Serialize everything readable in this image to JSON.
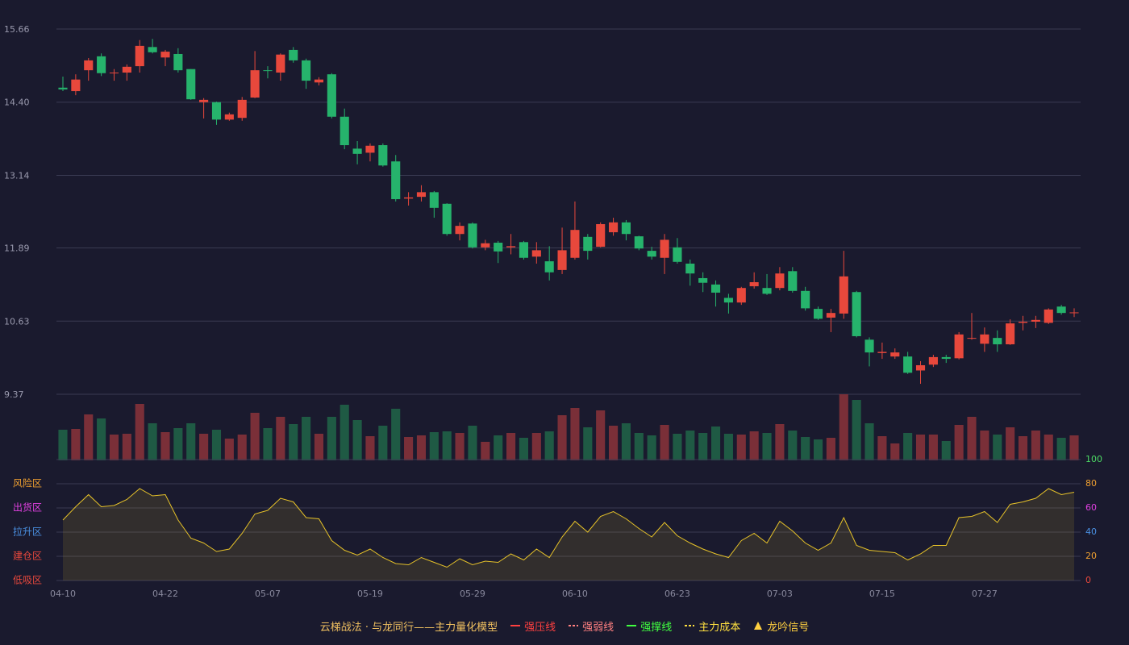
{
  "chart_data": {
    "type": "candlestick",
    "title": "云梯战法 · 与龙同行——主力量化模型",
    "categories": [
      "04-10",
      null,
      null,
      null,
      null,
      null,
      null,
      null,
      "04-22",
      null,
      null,
      null,
      null,
      null,
      null,
      null,
      "05-07",
      null,
      null,
      null,
      null,
      null,
      null,
      null,
      "05-19",
      null,
      null,
      null,
      null,
      null,
      null,
      null,
      "05-29",
      null,
      null,
      null,
      null,
      null,
      null,
      null,
      "06-10",
      null,
      null,
      null,
      null,
      null,
      null,
      null,
      "06-23",
      null,
      null,
      null,
      null,
      null,
      null,
      null,
      "07-03",
      null,
      null,
      null,
      null,
      null,
      null,
      null,
      "07-15",
      null,
      null,
      null,
      null,
      null,
      null,
      null,
      "07-27",
      null,
      null,
      null,
      null,
      null,
      null,
      null
    ],
    "open": [
      14.65,
      14.59,
      14.95,
      15.19,
      14.9,
      14.91,
      15.02,
      15.35,
      15.17,
      15.23,
      14.97,
      14.4,
      14.4,
      14.1,
      14.13,
      14.48,
      14.95,
      14.91,
      15.3,
      15.12,
      14.74,
      14.88,
      14.15,
      13.6,
      13.53,
      13.66,
      13.38,
      12.74,
      12.77,
      12.85,
      12.65,
      12.13,
      12.31,
      11.9,
      11.98,
      11.9,
      11.99,
      11.74,
      11.66,
      11.51,
      11.72,
      12.08,
      11.91,
      12.16,
      12.33,
      12.09,
      11.84,
      11.72,
      11.9,
      11.62,
      11.37,
      11.26,
      11.03,
      10.95,
      11.23,
      11.2,
      11.2,
      11.49,
      11.15,
      10.84,
      10.69,
      10.76,
      11.13,
      10.31,
      10.08,
      10.02,
      10.02,
      9.78,
      9.88,
      10.01,
      9.99,
      10.33,
      10.24,
      10.34,
      10.23,
      10.6,
      10.62,
      10.6,
      10.88,
      10.77
    ],
    "close": [
      14.62,
      14.79,
      15.12,
      14.9,
      14.91,
      15.01,
      15.37,
      15.26,
      15.27,
      14.95,
      14.45,
      14.44,
      14.1,
      14.19,
      14.44,
      14.95,
      14.94,
      15.22,
      15.12,
      14.77,
      14.79,
      14.15,
      13.66,
      13.51,
      13.65,
      13.31,
      12.73,
      12.76,
      12.85,
      12.58,
      12.13,
      12.27,
      11.9,
      11.97,
      11.83,
      11.92,
      11.72,
      11.85,
      11.47,
      11.85,
      12.2,
      11.84,
      12.3,
      12.33,
      12.13,
      11.88,
      11.74,
      12.03,
      11.65,
      11.45,
      11.29,
      11.12,
      10.95,
      11.2,
      11.3,
      11.1,
      11.45,
      11.15,
      10.85,
      10.67,
      10.77,
      11.4,
      10.37,
      10.09,
      10.1,
      10.09,
      9.74,
      9.87,
      10.01,
      9.98,
      10.4,
      10.34,
      10.4,
      10.23,
      10.59,
      10.62,
      10.65,
      10.83,
      10.77,
      10.78
    ],
    "high": [
      14.84,
      14.88,
      15.16,
      15.24,
      14.97,
      15.05,
      15.47,
      15.49,
      15.3,
      15.33,
      14.97,
      14.47,
      14.41,
      14.22,
      14.49,
      15.28,
      15.02,
      15.24,
      15.35,
      15.15,
      14.83,
      14.9,
      14.29,
      13.73,
      13.69,
      13.69,
      13.49,
      12.85,
      12.97,
      12.87,
      12.66,
      12.33,
      12.33,
      12.03,
      12.01,
      12.13,
      12.01,
      11.99,
      11.92,
      12.24,
      12.69,
      12.13,
      12.33,
      12.41,
      12.37,
      12.1,
      11.91,
      12.13,
      12.06,
      11.69,
      11.47,
      11.33,
      11.1,
      11.22,
      11.47,
      11.44,
      11.56,
      11.56,
      11.22,
      10.88,
      10.84,
      11.84,
      11.15,
      10.35,
      10.26,
      10.16,
      10.1,
      9.94,
      10.05,
      10.05,
      10.44,
      10.77,
      10.52,
      10.47,
      10.66,
      10.72,
      10.72,
      10.85,
      10.91,
      10.85
    ],
    "low": [
      14.59,
      14.52,
      14.77,
      14.85,
      14.77,
      14.77,
      14.91,
      15.24,
      15.02,
      14.91,
      14.44,
      14.12,
      14.01,
      14.08,
      14.08,
      14.47,
      14.81,
      14.77,
      15.08,
      14.63,
      14.69,
      14.12,
      13.59,
      13.33,
      13.38,
      13.29,
      12.69,
      12.62,
      12.69,
      12.41,
      12.1,
      12.02,
      11.88,
      11.85,
      11.63,
      11.78,
      11.69,
      11.62,
      11.33,
      11.44,
      11.69,
      11.69,
      11.9,
      12.1,
      12.02,
      11.85,
      11.69,
      11.44,
      11.62,
      11.24,
      11.13,
      10.88,
      10.76,
      10.91,
      11.19,
      11.08,
      11.16,
      11.12,
      10.81,
      10.65,
      10.44,
      10.67,
      10.35,
      9.85,
      9.98,
      9.98,
      9.72,
      9.55,
      9.84,
      9.91,
      9.97,
      10.31,
      10.1,
      10.1,
      10.22,
      10.47,
      10.51,
      10.58,
      10.74,
      10.7
    ],
    "up_color": "#e8483c",
    "down_color": "#26b36c",
    "ylim": [
      9.37,
      15.66
    ],
    "yticks": [
      15.66,
      {
        "value": 14.4,
        "label": "14.40"
      },
      13.14,
      11.89,
      10.63,
      9.37
    ],
    "grid": true,
    "volume": {
      "type": "bar",
      "values": [
        38,
        39,
        57,
        52,
        32,
        33,
        70,
        46,
        35,
        40,
        46,
        33,
        38,
        27,
        32,
        59,
        40,
        54,
        45,
        54,
        33,
        54,
        69,
        50,
        30,
        43,
        64,
        29,
        31,
        35,
        36,
        34,
        43,
        23,
        31,
        34,
        28,
        34,
        36,
        56,
        65,
        41,
        62,
        43,
        46,
        34,
        31,
        44,
        33,
        37,
        34,
        42,
        33,
        32,
        36,
        34,
        45,
        37,
        29,
        26,
        28,
        82,
        75,
        46,
        30,
        21,
        34,
        32,
        32,
        24,
        44,
        54,
        37,
        32,
        41,
        30,
        37,
        32,
        28,
        31
      ],
      "up_color": "#7a2f38",
      "down_color": "#1f5a44"
    },
    "indicator": {
      "type": "area",
      "values": [
        50,
        61,
        71,
        61,
        62,
        67,
        76,
        70,
        71,
        50,
        35,
        31,
        24,
        26,
        39,
        55,
        58,
        68,
        65,
        52,
        51,
        33,
        25,
        21,
        26,
        19,
        14,
        13,
        19,
        15,
        11,
        18,
        13,
        16,
        15,
        22,
        17,
        26,
        19,
        36,
        49,
        40,
        53,
        57,
        51,
        43,
        36,
        48,
        37,
        31,
        26,
        22,
        19,
        33,
        39,
        31,
        49,
        41,
        31,
        25,
        31,
        52,
        29,
        25,
        24,
        23,
        17,
        22,
        29,
        29,
        52,
        53,
        57,
        48,
        63,
        65,
        68,
        76,
        71,
        73
      ],
      "color": "#e6c229",
      "ylim": [
        0,
        100
      ],
      "yticks": [
        0,
        20,
        40,
        60,
        80,
        100
      ],
      "tick_colors": [
        "#e8483c",
        "#f0a030",
        "#4a90e2",
        "#e040e0",
        "#f0a030",
        "#4cd964"
      ],
      "zones": [
        {
          "label": "风险区",
          "value": 80,
          "color": "#f0a030"
        },
        {
          "label": "出货区",
          "value": 60,
          "color": "#e040e0"
        },
        {
          "label": "拉升区",
          "value": 40,
          "color": "#4a90e2"
        },
        {
          "label": "建仓区",
          "value": 20,
          "color": "#e8483c"
        },
        {
          "label": "低吸区",
          "value": 0,
          "color": "#e8483c"
        }
      ]
    },
    "legend": [
      {
        "name": "强压线",
        "color": "#ff4040",
        "marker": "line"
      },
      {
        "name": "强弱线",
        "color": "#ff8080",
        "marker": "dashed"
      },
      {
        "name": "强撑线",
        "color": "#40ff40",
        "marker": "line"
      },
      {
        "name": "主力成本",
        "color": "#ffe040",
        "marker": "dashed"
      },
      {
        "name": "龙吟信号",
        "color": "#ffd040",
        "marker": "triangle"
      }
    ]
  }
}
